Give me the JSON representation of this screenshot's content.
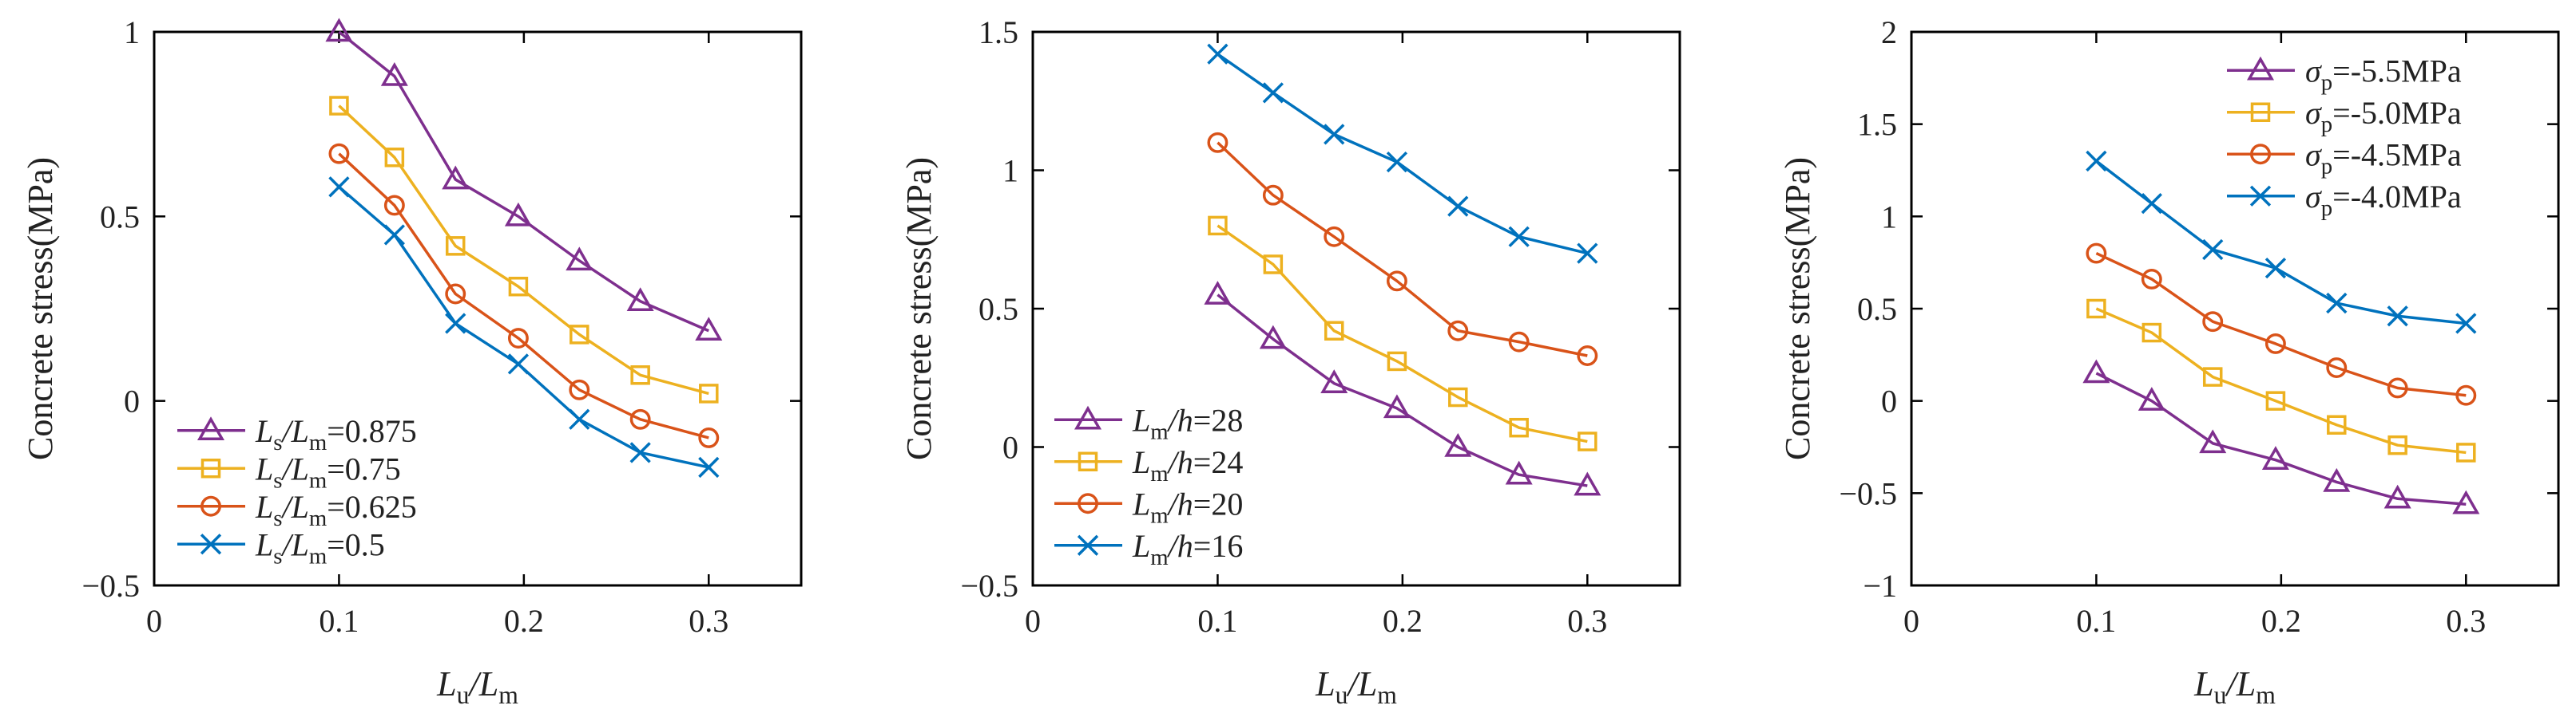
{
  "figure_colors": {
    "purple": "#7E2F8E",
    "yellow": "#EDB120",
    "orange": "#D95319",
    "blue": "#0072BD",
    "axis": "#000000"
  },
  "chart_data": [
    {
      "type": "line",
      "ylabel": "Concrete stress(MPa)",
      "xlabel_parts": [
        "L",
        "u",
        "/L",
        "m"
      ],
      "xlim": [
        0,
        0.35
      ],
      "ylim": [
        -0.5,
        1
      ],
      "xticks": [
        0,
        0.1,
        0.2,
        0.3
      ],
      "xtick_labels": [
        "0",
        "0.1",
        "0.2",
        "0.3"
      ],
      "yticks": [
        -0.5,
        0,
        0.5,
        1
      ],
      "ytick_labels": [
        "−0.5",
        "0",
        "0.5",
        "1"
      ],
      "legend_position": "bottom-left",
      "x": [
        0.1,
        0.13,
        0.163,
        0.197,
        0.23,
        0.263,
        0.3
      ],
      "series": [
        {
          "name": "Ls/Lm=0.875",
          "label_parts": [
            "L",
            "s",
            "/L",
            "m",
            "=0.875"
          ],
          "color": "#7E2F8E",
          "marker": "triangle",
          "values": [
            1.0,
            0.88,
            0.6,
            0.5,
            0.38,
            0.27,
            0.19
          ]
        },
        {
          "name": "Ls/Lm=0.75",
          "label_parts": [
            "L",
            "s",
            "/L",
            "m",
            "=0.75"
          ],
          "color": "#EDB120",
          "marker": "square",
          "values": [
            0.8,
            0.66,
            0.42,
            0.31,
            0.18,
            0.07,
            0.02
          ]
        },
        {
          "name": "Ls/Lm=0.625",
          "label_parts": [
            "L",
            "s",
            "/L",
            "m",
            "=0.625"
          ],
          "color": "#D95319",
          "marker": "circle",
          "values": [
            0.67,
            0.53,
            0.29,
            0.17,
            0.03,
            -0.05,
            -0.1
          ]
        },
        {
          "name": "Ls/Lm=0.5",
          "label_parts": [
            "L",
            "s",
            "/L",
            "m",
            "=0.5"
          ],
          "color": "#0072BD",
          "marker": "x",
          "values": [
            0.58,
            0.45,
            0.21,
            0.1,
            -0.05,
            -0.14,
            -0.18
          ]
        }
      ]
    },
    {
      "type": "line",
      "ylabel": "Concrete stress(MPa)",
      "xlabel_parts": [
        "L",
        "u",
        "/L",
        "m"
      ],
      "xlim": [
        0,
        0.35
      ],
      "ylim": [
        -0.5,
        1.5
      ],
      "xticks": [
        0,
        0.1,
        0.2,
        0.3
      ],
      "xtick_labels": [
        "0",
        "0.1",
        "0.2",
        "0.3"
      ],
      "yticks": [
        -0.5,
        0,
        0.5,
        1,
        1.5
      ],
      "ytick_labels": [
        "−0.5",
        "0",
        "0.5",
        "1",
        "1.5"
      ],
      "legend_position": "bottom-left",
      "x": [
        0.1,
        0.13,
        0.163,
        0.197,
        0.23,
        0.263,
        0.3
      ],
      "series": [
        {
          "name": "Lm/h=28",
          "label_parts": [
            "L",
            "m",
            "/h",
            "",
            "=28"
          ],
          "color": "#7E2F8E",
          "marker": "triangle",
          "values": [
            0.55,
            0.39,
            0.23,
            0.14,
            0.0,
            -0.1,
            -0.14
          ]
        },
        {
          "name": "Lm/h=24",
          "label_parts": [
            "L",
            "m",
            "/h",
            "",
            "=24"
          ],
          "color": "#EDB120",
          "marker": "square",
          "values": [
            0.8,
            0.66,
            0.42,
            0.31,
            0.18,
            0.07,
            0.02
          ]
        },
        {
          "name": "Lm/h=20",
          "label_parts": [
            "L",
            "m",
            "/h",
            "",
            "=20"
          ],
          "color": "#D95319",
          "marker": "circle",
          "values": [
            1.1,
            0.91,
            0.76,
            0.6,
            0.42,
            0.38,
            0.33
          ]
        },
        {
          "name": "Lm/h=16",
          "label_parts": [
            "L",
            "m",
            "/h",
            "",
            "=16"
          ],
          "color": "#0072BD",
          "marker": "x",
          "values": [
            1.42,
            1.28,
            1.13,
            1.03,
            0.87,
            0.76,
            0.7
          ]
        }
      ]
    },
    {
      "type": "line",
      "ylabel": "Concrete stress(MPa)",
      "xlabel_parts": [
        "L",
        "u",
        "/L",
        "m"
      ],
      "xlim": [
        0,
        0.35
      ],
      "ylim": [
        -1,
        2
      ],
      "xticks": [
        0,
        0.1,
        0.2,
        0.3
      ],
      "xtick_labels": [
        "0",
        "0.1",
        "0.2",
        "0.3"
      ],
      "yticks": [
        -1,
        -0.5,
        0,
        0.5,
        1,
        1.5,
        2
      ],
      "ytick_labels": [
        "−1",
        "−0.5",
        "0",
        "0.5",
        "1",
        "1.5",
        "2"
      ],
      "legend_position": "top-right",
      "x": [
        0.1,
        0.13,
        0.163,
        0.197,
        0.23,
        0.263,
        0.3
      ],
      "series": [
        {
          "name": "σp=-5.5MPa",
          "label_parts": [
            "σ",
            "p",
            "=-5.5MPa",
            "",
            ""
          ],
          "color": "#7E2F8E",
          "marker": "triangle",
          "values": [
            0.15,
            0.0,
            -0.23,
            -0.32,
            -0.44,
            -0.53,
            -0.56
          ]
        },
        {
          "name": "σp=-5.0MPa",
          "label_parts": [
            "σ",
            "p",
            "=-5.0MPa",
            "",
            ""
          ],
          "color": "#EDB120",
          "marker": "square",
          "values": [
            0.5,
            0.37,
            0.13,
            0.0,
            -0.13,
            -0.24,
            -0.28
          ]
        },
        {
          "name": "σp=-4.5MPa",
          "label_parts": [
            "σ",
            "p",
            "=-4.5MPa",
            "",
            ""
          ],
          "color": "#D95319",
          "marker": "circle",
          "values": [
            0.8,
            0.66,
            0.43,
            0.31,
            0.18,
            0.07,
            0.03
          ]
        },
        {
          "name": "σp=-4.0MPa",
          "label_parts": [
            "σ",
            "p",
            "=-4.0MPa",
            "",
            ""
          ],
          "color": "#0072BD",
          "marker": "x",
          "values": [
            1.3,
            1.07,
            0.82,
            0.72,
            0.53,
            0.46,
            0.42
          ]
        }
      ]
    }
  ]
}
